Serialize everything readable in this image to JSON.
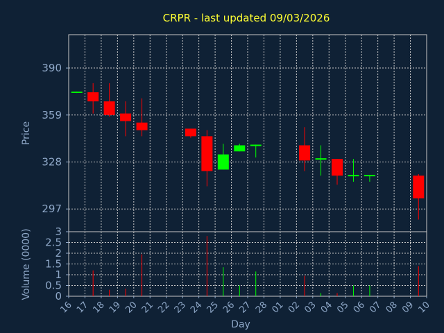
{
  "chart_data": {
    "type": "candlestick",
    "title": "CRPR - last updated 09/03/2026",
    "xlabel": "Day",
    "colors": {
      "background": "#0f2135",
      "plot": "#0f2135",
      "up": "#00ff00",
      "down": "#ff0000",
      "title": "#ffff33",
      "axis": "#8fa8c8",
      "grid": "#c8c8c8"
    },
    "grid": true,
    "x": [
      "16",
      "17",
      "18",
      "19",
      "20",
      "21",
      "22",
      "23",
      "24",
      "25",
      "26",
      "27",
      "28",
      "01",
      "02",
      "03",
      "04",
      "05",
      "06",
      "07",
      "08",
      "09",
      "10"
    ],
    "price": {
      "ylabel": "Price",
      "ylim": [
        282,
        412
      ],
      "yticks": [
        297,
        328,
        359,
        390
      ],
      "candles": [
        {
          "x": "16",
          "open": 374,
          "high": 374.5,
          "low": 373.5,
          "close": 374,
          "dir": "up"
        },
        {
          "x": "17",
          "open": 374,
          "high": 380,
          "low": 360,
          "close": 368,
          "dir": "down"
        },
        {
          "x": "18",
          "open": 368,
          "high": 380,
          "low": 358,
          "close": 359,
          "dir": "down"
        },
        {
          "x": "19",
          "open": 360,
          "high": 368,
          "low": 345,
          "close": 355,
          "dir": "down"
        },
        {
          "x": "20",
          "open": 354,
          "high": 370,
          "low": 345,
          "close": 349,
          "dir": "down"
        },
        {
          "x": "23",
          "open": 350,
          "high": 350,
          "low": 344,
          "close": 345,
          "dir": "down"
        },
        {
          "x": "24",
          "open": 345,
          "high": 349,
          "low": 312,
          "close": 322,
          "dir": "down"
        },
        {
          "x": "25",
          "open": 323,
          "high": 340,
          "low": 323,
          "close": 333,
          "dir": "up"
        },
        {
          "x": "26",
          "open": 335,
          "high": 340,
          "low": 335,
          "close": 339,
          "dir": "up"
        },
        {
          "x": "27",
          "open": 339,
          "high": 339.5,
          "low": 331,
          "close": 339,
          "dir": "up"
        },
        {
          "x": "02",
          "open": 339,
          "high": 351,
          "low": 322,
          "close": 329,
          "dir": "down"
        },
        {
          "x": "03",
          "open": 330,
          "high": 339,
          "low": 319,
          "close": 330,
          "dir": "up"
        },
        {
          "x": "04",
          "open": 330,
          "high": 330,
          "low": 313,
          "close": 319,
          "dir": "down"
        },
        {
          "x": "05",
          "open": 319,
          "high": 330,
          "low": 315,
          "close": 319,
          "dir": "up"
        },
        {
          "x": "06",
          "open": 319,
          "high": 319.5,
          "low": 315,
          "close": 319,
          "dir": "up"
        },
        {
          "x": "09",
          "open": 319,
          "high": 320,
          "low": 290,
          "close": 304,
          "dir": "down"
        }
      ]
    },
    "volume": {
      "ylabel": "Volume (0000)",
      "ylim": [
        0,
        3
      ],
      "yticks": [
        0,
        0.5,
        1,
        1.5,
        2,
        2.5,
        3
      ],
      "ytick_labels": [
        "0",
        "0.5",
        "1",
        "1.5",
        "2",
        "2.5",
        "3"
      ],
      "bars": [
        {
          "x": "17",
          "value": 1.2,
          "dir": "down"
        },
        {
          "x": "18",
          "value": 0.3,
          "dir": "down"
        },
        {
          "x": "19",
          "value": 0.35,
          "dir": "down"
        },
        {
          "x": "20",
          "value": 1.95,
          "dir": "down"
        },
        {
          "x": "24",
          "value": 2.8,
          "dir": "down"
        },
        {
          "x": "25",
          "value": 1.35,
          "dir": "up"
        },
        {
          "x": "26",
          "value": 0.5,
          "dir": "up"
        },
        {
          "x": "27",
          "value": 1.15,
          "dir": "up"
        },
        {
          "x": "02",
          "value": 0.95,
          "dir": "down"
        },
        {
          "x": "03",
          "value": 0.15,
          "dir": "up"
        },
        {
          "x": "04",
          "value": 0.15,
          "dir": "down"
        },
        {
          "x": "05",
          "value": 0.5,
          "dir": "up"
        },
        {
          "x": "06",
          "value": 0.5,
          "dir": "up"
        },
        {
          "x": "09",
          "value": 1.4,
          "dir": "down"
        }
      ]
    }
  }
}
